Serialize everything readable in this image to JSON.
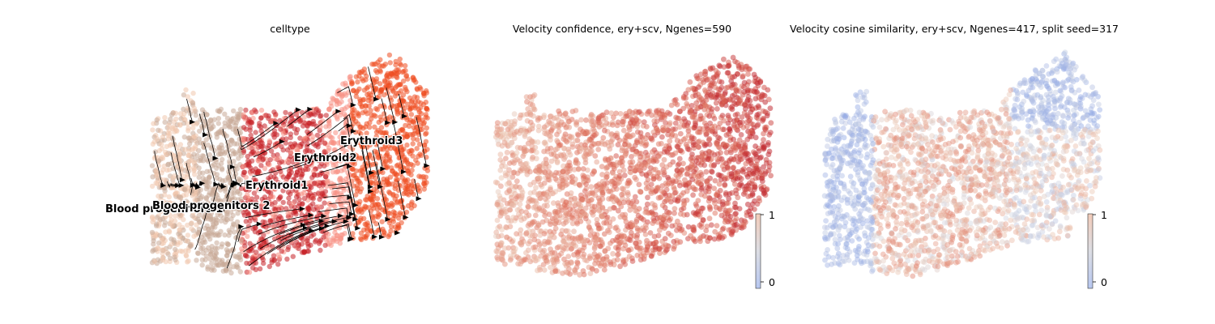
{
  "chart_data": [
    {
      "type": "scatter",
      "title": "celltype",
      "overlay": "velocity streamlines with arrowheads",
      "legend": "on data",
      "grid": false,
      "axes_visible": false,
      "clusters": [
        {
          "name": "Blood progenitors 1",
          "label": "Blood progenitors 1",
          "color": "#f1c6ad"
        },
        {
          "name": "Blood progenitors 2",
          "label": "Blood progenitors 2",
          "color": "#c9aa97"
        },
        {
          "name": "Erythroid1",
          "label": "Erythroid1",
          "color": "#c72228"
        },
        {
          "name": "Erythroid2",
          "label": "Erythroid2",
          "color": "#f79083"
        },
        {
          "name": "Erythroid3",
          "label": "Erythroid3",
          "color": "#ef4e22"
        }
      ]
    },
    {
      "type": "scatter",
      "title": "Velocity confidence, ery+scv, Ngenes=590",
      "colormap": "coolwarm",
      "grid": false,
      "axes_visible": false,
      "colorbar": {
        "ticks": [
          "1",
          "0"
        ],
        "range": [
          0,
          1
        ]
      }
    },
    {
      "type": "scatter",
      "title": "Velocity cosine similarity, ery+scv, Ngenes=417, split seed=317",
      "colormap": "coolwarm",
      "grid": false,
      "axes_visible": false,
      "colorbar": {
        "ticks": [
          "1",
          "0"
        ],
        "range": [
          0,
          1
        ]
      }
    }
  ]
}
